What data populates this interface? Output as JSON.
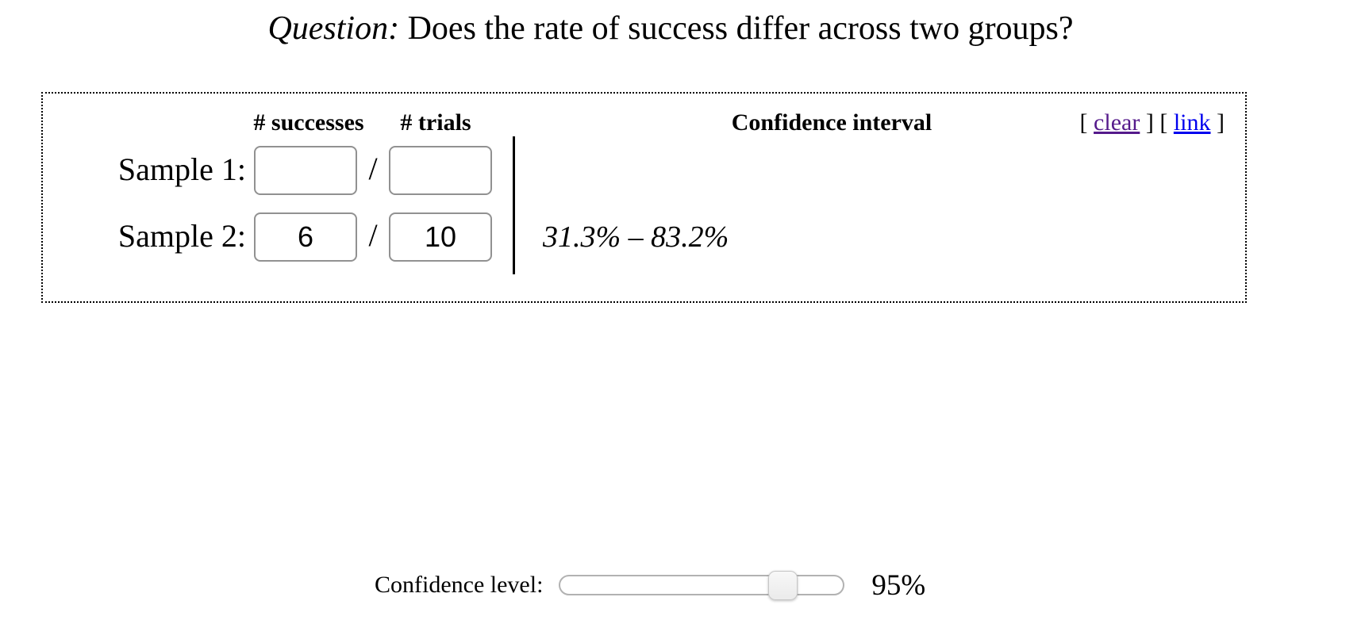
{
  "title": {
    "question_label": "Question:",
    "question_text": "Does the rate of success differ across two groups?"
  },
  "panel": {
    "columns": {
      "successes": "# successes",
      "trials": "# trials",
      "confidence_interval": "Confidence interval"
    },
    "actions": {
      "clear": {
        "pre": "[",
        "label": "clear",
        "post": "]"
      },
      "link": {
        "pre": "[",
        "label": "link",
        "post": "]"
      }
    },
    "slash": "/",
    "rows": [
      {
        "label": "Sample 1:",
        "successes": "",
        "trials": "",
        "confidence_interval": ""
      },
      {
        "label": "Sample 2:",
        "successes": "6",
        "trials": "10",
        "confidence_interval": "31.3% – 83.2%"
      }
    ]
  },
  "confidence_level": {
    "label": "Confidence level:",
    "value_display": "95%",
    "percent": 95
  },
  "colors": {
    "visited_link_purple": "#551a8b",
    "link_blue": "#0000ee"
  }
}
